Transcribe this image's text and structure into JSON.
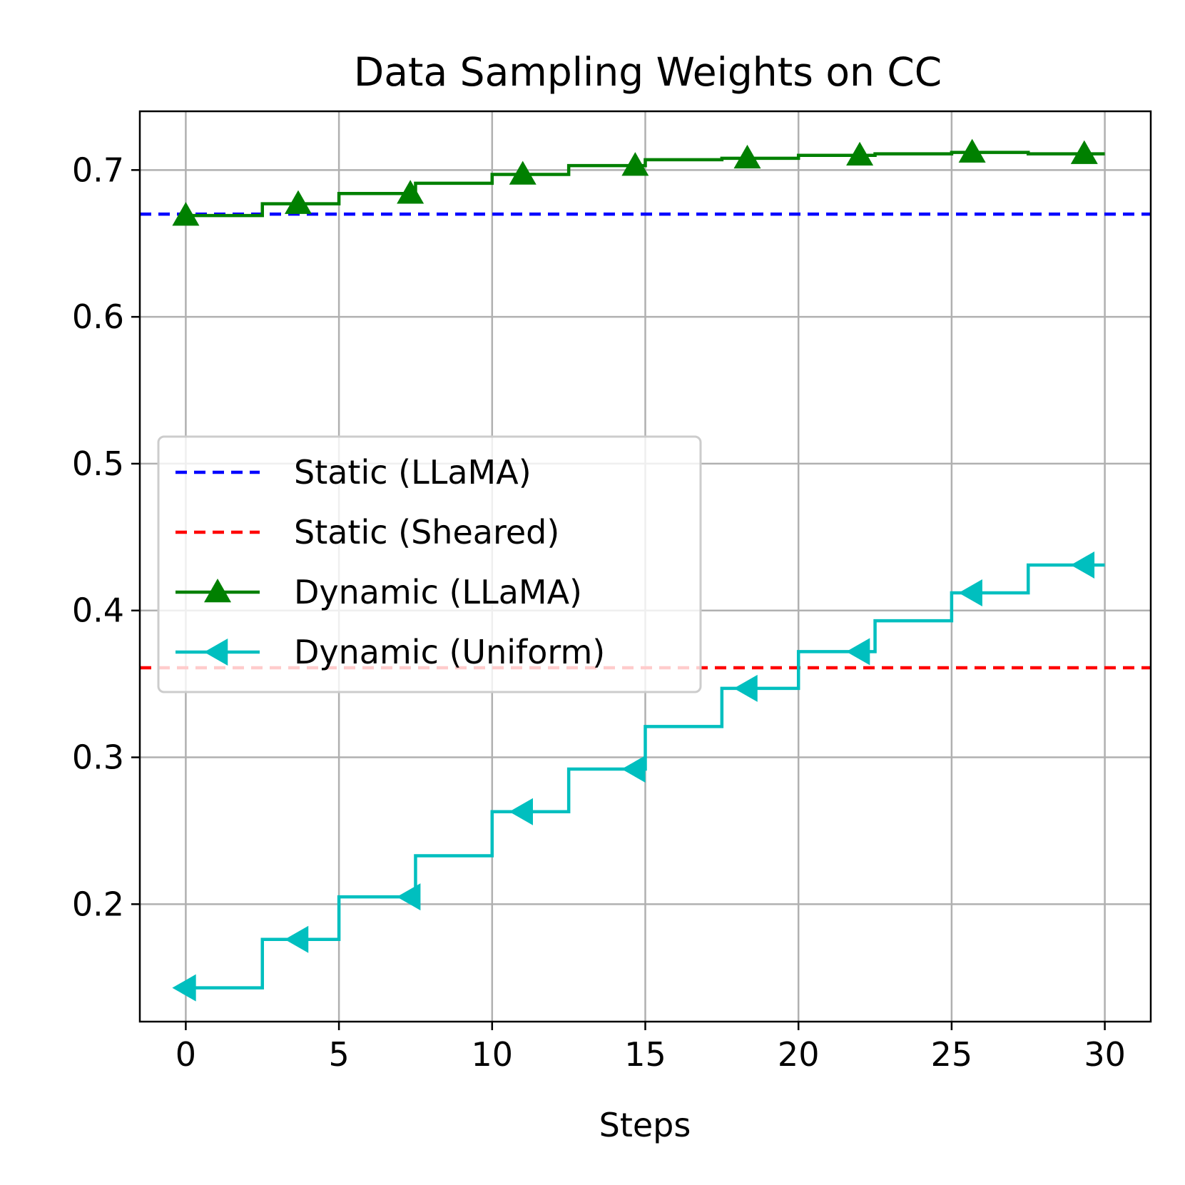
{
  "chart_data": {
    "type": "line",
    "title": "Data Sampling Weights on CC",
    "xlabel": "Steps",
    "ylabel": "",
    "xlim": [
      -1.5,
      31.5
    ],
    "ylim": [
      0.12,
      0.74
    ],
    "xticks": [
      0,
      5,
      10,
      15,
      20,
      25,
      30
    ],
    "xtick_labels": [
      "0",
      "5",
      "10",
      "15",
      "20",
      "25",
      "30"
    ],
    "yticks": [
      0.2,
      0.3,
      0.4,
      0.5,
      0.6,
      0.7
    ],
    "ytick_labels": [
      "0.2",
      "0.3",
      "0.4",
      "0.5",
      "0.6",
      "0.7"
    ],
    "grid": true,
    "legend_position": "center-left",
    "series": [
      {
        "name": "Static (LLaMA)",
        "kind": "hline",
        "value": 0.67,
        "color": "#0000ff",
        "style": "dashed"
      },
      {
        "name": "Static (Sheared)",
        "kind": "hline",
        "value": 0.361,
        "color": "#ff0000",
        "style": "dashed"
      },
      {
        "name": "Dynamic (LLaMA)",
        "kind": "step",
        "color": "#008000",
        "marker": "triangle-up",
        "steps": [
          {
            "x0": 0,
            "x1": 2.5,
            "y": 0.669
          },
          {
            "x0": 2.5,
            "x1": 5,
            "y": 0.677
          },
          {
            "x0": 5,
            "x1": 7.5,
            "y": 0.684
          },
          {
            "x0": 7.5,
            "x1": 10,
            "y": 0.691
          },
          {
            "x0": 10,
            "x1": 12.5,
            "y": 0.697
          },
          {
            "x0": 12.5,
            "x1": 15,
            "y": 0.703
          },
          {
            "x0": 15,
            "x1": 17.5,
            "y": 0.707
          },
          {
            "x0": 17.5,
            "x1": 20,
            "y": 0.708
          },
          {
            "x0": 20,
            "x1": 22.5,
            "y": 0.71
          },
          {
            "x0": 22.5,
            "x1": 25,
            "y": 0.711
          },
          {
            "x0": 25,
            "x1": 27.5,
            "y": 0.712
          },
          {
            "x0": 27.5,
            "x1": 30,
            "y": 0.711
          }
        ],
        "markers": [
          {
            "x": 0,
            "y": 0.669
          },
          {
            "x": 3.67,
            "y": 0.677
          },
          {
            "x": 7.33,
            "y": 0.684
          },
          {
            "x": 11,
            "y": 0.697
          },
          {
            "x": 14.67,
            "y": 0.703
          },
          {
            "x": 18.33,
            "y": 0.708
          },
          {
            "x": 22,
            "y": 0.71
          },
          {
            "x": 25.67,
            "y": 0.712
          },
          {
            "x": 29.33,
            "y": 0.711
          }
        ]
      },
      {
        "name": "Dynamic (Uniform)",
        "kind": "step",
        "color": "#00bfbf",
        "marker": "triangle-left",
        "steps": [
          {
            "x0": 0,
            "x1": 2.5,
            "y": 0.143
          },
          {
            "x0": 2.5,
            "x1": 5,
            "y": 0.176
          },
          {
            "x0": 5,
            "x1": 7.5,
            "y": 0.205
          },
          {
            "x0": 7.5,
            "x1": 10,
            "y": 0.233
          },
          {
            "x0": 10,
            "x1": 12.5,
            "y": 0.263
          },
          {
            "x0": 12.5,
            "x1": 15,
            "y": 0.292
          },
          {
            "x0": 15,
            "x1": 17.5,
            "y": 0.321
          },
          {
            "x0": 17.5,
            "x1": 20,
            "y": 0.347
          },
          {
            "x0": 20,
            "x1": 22.5,
            "y": 0.372
          },
          {
            "x0": 22.5,
            "x1": 25,
            "y": 0.393
          },
          {
            "x0": 25,
            "x1": 27.5,
            "y": 0.412
          },
          {
            "x0": 27.5,
            "x1": 30,
            "y": 0.431
          }
        ],
        "markers": [
          {
            "x": 0,
            "y": 0.143
          },
          {
            "x": 3.67,
            "y": 0.176
          },
          {
            "x": 7.33,
            "y": 0.205
          },
          {
            "x": 11,
            "y": 0.263
          },
          {
            "x": 14.67,
            "y": 0.292
          },
          {
            "x": 18.33,
            "y": 0.347
          },
          {
            "x": 22,
            "y": 0.372
          },
          {
            "x": 25.67,
            "y": 0.412
          },
          {
            "x": 29.33,
            "y": 0.431
          }
        ]
      }
    ]
  }
}
